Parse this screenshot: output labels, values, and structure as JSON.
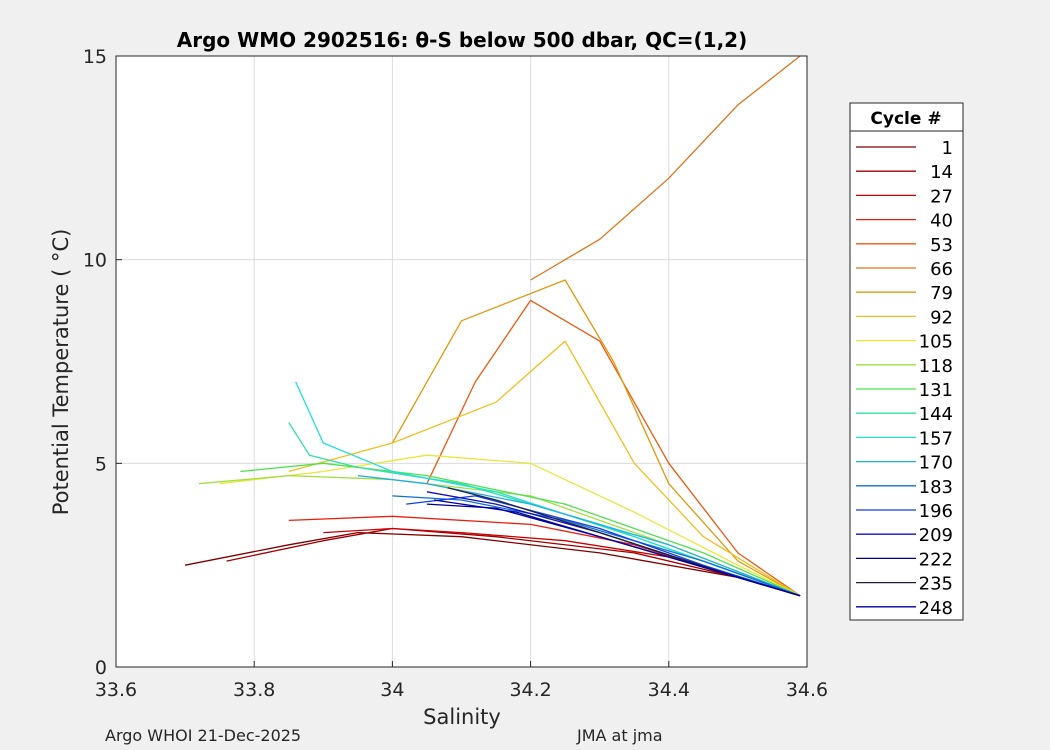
{
  "chart_data": {
    "type": "line",
    "title": "Argo WMO 2902516: θ-S below 500 dbar,  QC=(1,2)",
    "xlabel": "Salinity",
    "ylabel": "Potential Temperature ( °C)",
    "xlim": [
      33.6,
      34.6
    ],
    "ylim": [
      0,
      15
    ],
    "xticks": [
      "33.6",
      "33.8",
      "34",
      "34.2",
      "34.4",
      "34.6"
    ],
    "xtick_values": [
      33.6,
      33.8,
      34.0,
      34.2,
      34.4,
      34.6
    ],
    "yticks": [
      "0",
      "5",
      "10",
      "15"
    ],
    "ytick_values": [
      0,
      5,
      10,
      15
    ],
    "grid": true,
    "legend_title": "Cycle #",
    "legend_position": "right-outside",
    "series": [
      {
        "name": "1",
        "color": "#800000",
        "s": [
          33.7,
          33.85,
          33.95,
          34.1,
          34.3,
          34.5,
          34.59
        ],
        "t": [
          2.5,
          3.0,
          3.3,
          3.2,
          2.8,
          2.2,
          1.75
        ]
      },
      {
        "name": "14",
        "color": "#a00000",
        "s": [
          33.76,
          33.9,
          34.0,
          34.15,
          34.35,
          34.5,
          34.59
        ],
        "t": [
          2.6,
          3.1,
          3.4,
          3.2,
          2.8,
          2.2,
          1.75
        ]
      },
      {
        "name": "27",
        "color": "#cc0000",
        "s": [
          33.9,
          34.0,
          34.1,
          34.25,
          34.4,
          34.52,
          34.59
        ],
        "t": [
          3.3,
          3.4,
          3.3,
          3.1,
          2.7,
          2.1,
          1.75
        ]
      },
      {
        "name": "40",
        "color": "#e82010",
        "s": [
          33.85,
          34.0,
          34.2,
          34.35,
          34.5,
          34.59
        ],
        "t": [
          3.6,
          3.7,
          3.5,
          3.0,
          2.2,
          1.75
        ]
      },
      {
        "name": "53",
        "color": "#ec5a10",
        "s": [
          34.05,
          34.12,
          34.2,
          34.3,
          34.4,
          34.5,
          34.59
        ],
        "t": [
          4.5,
          7.0,
          9.0,
          8.0,
          5.0,
          2.8,
          1.75
        ]
      },
      {
        "name": "66",
        "color": "#e0741a",
        "s": [
          34.2,
          34.3,
          34.4,
          34.5,
          34.59
        ],
        "t": [
          9.5,
          10.5,
          12.0,
          13.8,
          15.0
        ]
      },
      {
        "name": "79",
        "color": "#e09a10",
        "s": [
          34.0,
          34.1,
          34.25,
          34.32,
          34.4,
          34.5,
          34.59
        ],
        "t": [
          5.5,
          8.5,
          9.5,
          7.5,
          4.5,
          2.6,
          1.75
        ]
      },
      {
        "name": "92",
        "color": "#f0c020",
        "s": [
          33.85,
          34.0,
          34.15,
          34.25,
          34.35,
          34.45,
          34.59
        ],
        "t": [
          4.8,
          5.5,
          6.5,
          8.0,
          5.0,
          3.2,
          1.75
        ]
      },
      {
        "name": "105",
        "color": "#e8e83a",
        "s": [
          33.75,
          33.9,
          34.05,
          34.2,
          34.35,
          34.5,
          34.59
        ],
        "t": [
          4.5,
          4.8,
          5.2,
          5.0,
          3.8,
          2.5,
          1.75
        ]
      },
      {
        "name": "118",
        "color": "#a0e040",
        "s": [
          33.72,
          33.85,
          34.0,
          34.2,
          34.4,
          34.59
        ],
        "t": [
          4.5,
          4.7,
          4.6,
          4.2,
          3.0,
          1.75
        ]
      },
      {
        "name": "131",
        "color": "#50e050",
        "s": [
          33.78,
          33.9,
          34.05,
          34.25,
          34.45,
          34.59
        ],
        "t": [
          4.8,
          5.0,
          4.7,
          4.0,
          2.8,
          1.75
        ]
      },
      {
        "name": "144",
        "color": "#30e0a0",
        "s": [
          33.85,
          33.88,
          33.95,
          34.1,
          34.3,
          34.5,
          34.59
        ],
        "t": [
          6.0,
          5.2,
          4.9,
          4.5,
          3.5,
          2.3,
          1.75
        ]
      },
      {
        "name": "157",
        "color": "#20e0d8",
        "s": [
          33.86,
          33.9,
          34.0,
          34.15,
          34.35,
          34.59
        ],
        "t": [
          7.0,
          5.5,
          4.8,
          4.3,
          3.2,
          1.75
        ]
      },
      {
        "name": "170",
        "color": "#20b0e0",
        "s": [
          33.95,
          34.05,
          34.2,
          34.4,
          34.59
        ],
        "t": [
          4.7,
          4.5,
          4.0,
          3.0,
          1.75
        ]
      },
      {
        "name": "183",
        "color": "#1070d0",
        "s": [
          34.0,
          34.1,
          34.25,
          34.45,
          34.59
        ],
        "t": [
          4.2,
          4.1,
          3.6,
          2.6,
          1.75
        ]
      },
      {
        "name": "196",
        "color": "#1040e0",
        "s": [
          34.02,
          34.12,
          34.3,
          34.45,
          34.59
        ],
        "t": [
          4.0,
          4.2,
          3.4,
          2.5,
          1.75
        ]
      },
      {
        "name": "209",
        "color": "#1010c0",
        "s": [
          34.05,
          34.15,
          34.3,
          34.5,
          34.59
        ],
        "t": [
          4.3,
          4.0,
          3.3,
          2.2,
          1.75
        ]
      },
      {
        "name": "222",
        "color": "#000090",
        "s": [
          34.05,
          34.15,
          34.3,
          34.5,
          34.59
        ],
        "t": [
          4.0,
          3.9,
          3.2,
          2.2,
          1.75
        ]
      },
      {
        "name": "235",
        "color": "#202040",
        "s": [
          34.08,
          34.15,
          34.3,
          34.5,
          34.59
        ],
        "t": [
          4.4,
          4.1,
          3.3,
          2.2,
          1.75
        ]
      },
      {
        "name": "248",
        "color": "#0000a0",
        "s": [
          34.06,
          34.18,
          34.32,
          34.5,
          34.59
        ],
        "t": [
          4.1,
          3.8,
          3.1,
          2.2,
          1.75
        ]
      }
    ]
  },
  "footer": {
    "left": "Argo WHOI 21-Dec-2025",
    "right": "JMA at jma"
  }
}
